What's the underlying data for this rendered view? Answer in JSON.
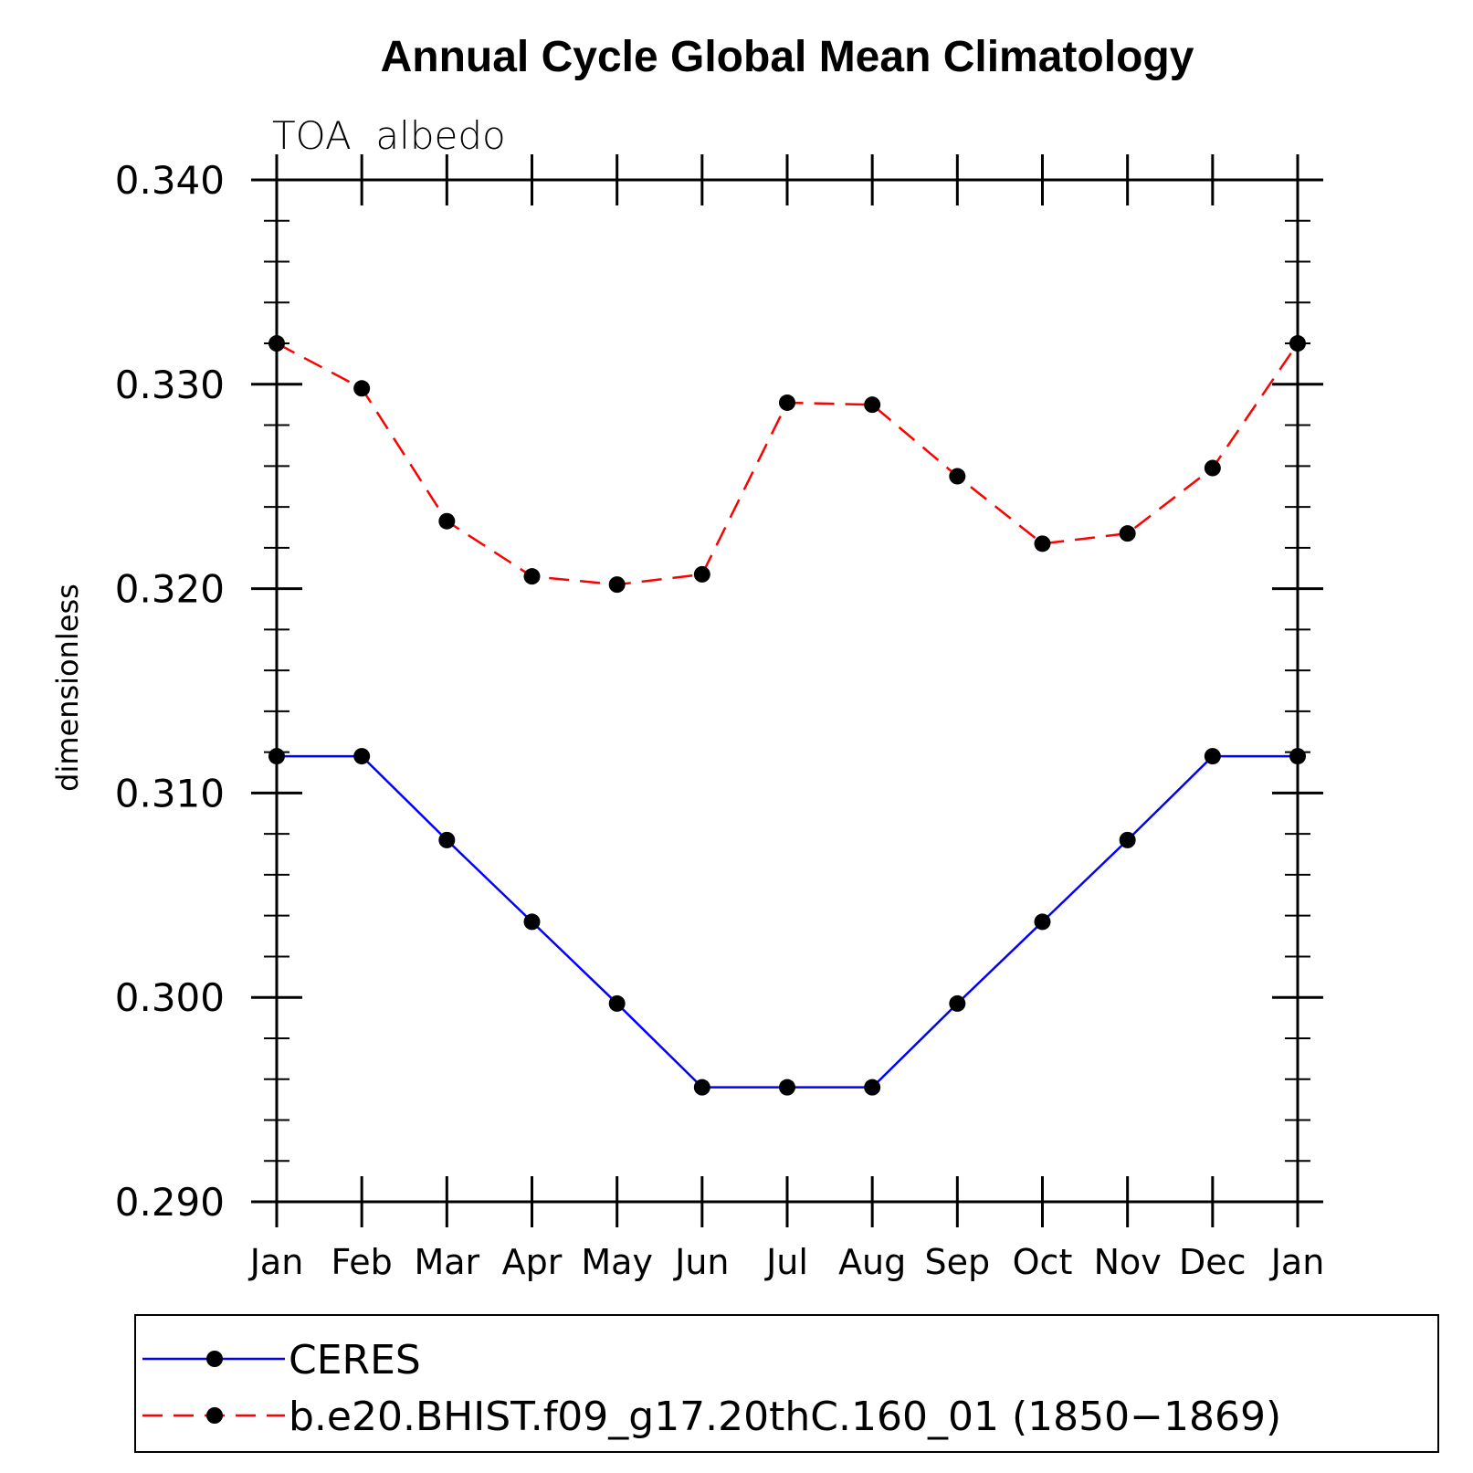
{
  "chart_data": {
    "type": "line",
    "title": "Annual Cycle Global Mean Climatology",
    "subtitle": "TOA  albedo",
    "xlabel": "",
    "ylabel": "dimensionless",
    "categories": [
      "Jan",
      "Feb",
      "Mar",
      "Apr",
      "May",
      "Jun",
      "Jul",
      "Aug",
      "Sep",
      "Oct",
      "Nov",
      "Dec",
      "Jan"
    ],
    "ylim": [
      0.29,
      0.34
    ],
    "yticks": [
      "0.290",
      "0.300",
      "0.310",
      "0.320",
      "0.330",
      "0.340"
    ],
    "grid": false,
    "legend_position": "bottom",
    "series": [
      {
        "name": "CERES",
        "color": "#0000ff",
        "dash": "solid",
        "marker": "filled-circle",
        "values": [
          0.3118,
          0.3118,
          0.3077,
          0.3037,
          0.2997,
          0.2956,
          0.2956,
          0.2956,
          0.2997,
          0.3037,
          0.3077,
          0.3118,
          0.3118
        ]
      },
      {
        "name": "b.e20.BHIST.f09_g17.20thC.160_01 (1850−1869)",
        "color": "#ff0000",
        "dash": "dashed",
        "marker": "filled-circle",
        "values": [
          0.332,
          0.3298,
          0.3233,
          0.3206,
          0.3202,
          0.3207,
          0.3291,
          0.329,
          0.3255,
          0.3222,
          0.3227,
          0.3259,
          0.332
        ]
      }
    ]
  }
}
